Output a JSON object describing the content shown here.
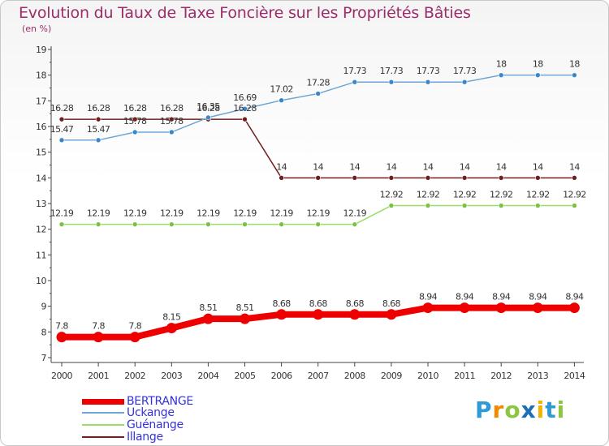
{
  "header": {
    "title": "Evolution du Taux de Taxe Foncière sur les Propriétés Bâties",
    "unit": "(en %)"
  },
  "colors": {
    "BERTRANGE": "#ee0000",
    "Uckange": "#6fa6d6",
    "Guénange": "#99dd66",
    "Illange": "#6e2020"
  },
  "chart_data": {
    "type": "line",
    "title": "Evolution du Taux de Taxe Foncière sur les Propriétés Bâties",
    "ylabel": "(en %)",
    "xlabel": "",
    "ylim": [
      7,
      19
    ],
    "yticks": [
      7,
      8,
      9,
      10,
      11,
      12,
      13,
      14,
      15,
      16,
      17,
      18,
      19
    ],
    "x": [
      "2000",
      "2001",
      "2002",
      "2003",
      "2004",
      "2005",
      "2006",
      "2007",
      "2008",
      "2009",
      "2010",
      "2011",
      "2012",
      "2013",
      "2014"
    ],
    "series": [
      {
        "name": "Illange",
        "values": [
          16.28,
          16.28,
          16.28,
          16.28,
          16.28,
          16.28,
          14,
          14,
          14,
          14,
          14,
          14,
          14,
          14,
          14
        ],
        "labels": [
          "16.28",
          "16.28",
          "16.28",
          "16.28",
          "16.28",
          "16.28",
          "14",
          "14",
          "14",
          "14",
          "14",
          "14",
          "14",
          "14",
          "14"
        ]
      },
      {
        "name": "Uckange",
        "values": [
          15.47,
          15.47,
          15.78,
          15.78,
          16.35,
          16.69,
          17.02,
          17.28,
          17.73,
          17.73,
          17.73,
          17.73,
          18,
          18,
          18
        ],
        "labels": [
          "15.47",
          "15.47",
          "15.78",
          "15.78",
          "16.35",
          "16.69",
          "17.02",
          "17.28",
          "17.73",
          "17.73",
          "17.73",
          "17.73",
          "18",
          "18",
          "18"
        ]
      },
      {
        "name": "Guénange",
        "values": [
          12.19,
          12.19,
          12.19,
          12.19,
          12.19,
          12.19,
          12.19,
          12.19,
          12.19,
          12.92,
          12.92,
          12.92,
          12.92,
          12.92,
          12.92
        ],
        "labels": [
          "12.19",
          "12.19",
          "12.19",
          "12.19",
          "12.19",
          "12.19",
          "12.19",
          "12.19",
          "12.19",
          "12.92",
          "12.92",
          "12.92",
          "12.92",
          "12.92",
          "12.92"
        ]
      },
      {
        "name": "BERTRANGE",
        "values": [
          7.8,
          7.8,
          7.8,
          8.15,
          8.51,
          8.51,
          8.68,
          8.68,
          8.68,
          8.68,
          8.94,
          8.94,
          8.94,
          8.94,
          8.94
        ],
        "labels": [
          "7.8",
          "7.8",
          "7.8",
          "8.15",
          "8.51",
          "8.51",
          "8.68",
          "8.68",
          "8.68",
          "8.68",
          "8.94",
          "8.94",
          "8.94",
          "8.94",
          "8.94"
        ]
      }
    ],
    "legend": [
      "BERTRANGE",
      "Uckange",
      "Guénange",
      "Illange"
    ],
    "legend_position": "bottom-left",
    "grid": false
  },
  "logo": {
    "letters": [
      "P",
      "r",
      "o",
      "x",
      "i",
      "t",
      "i"
    ],
    "colors": [
      "#2f9ad6",
      "#f08a00",
      "#8cc63f",
      "#1a6fb8",
      "#f0b400",
      "#2f9ad6",
      "#8cc63f"
    ]
  }
}
